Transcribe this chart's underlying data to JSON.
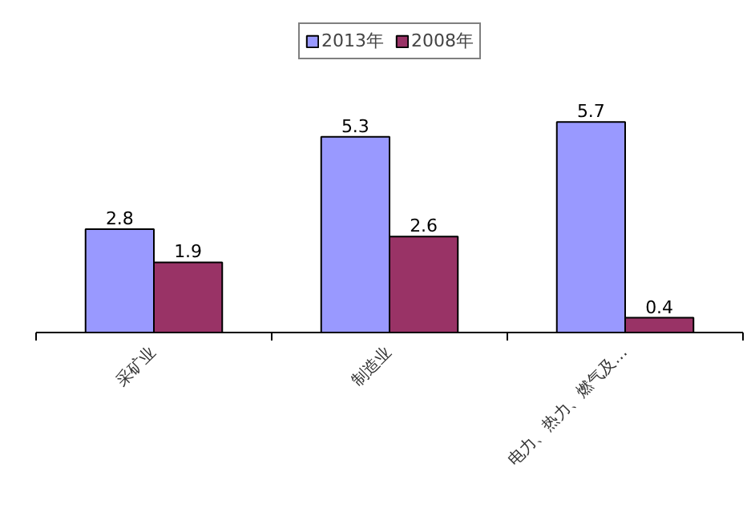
{
  "chart_data": {
    "type": "bar",
    "categories": [
      "采矿业",
      "制造业",
      "电力、热力、燃气及…"
    ],
    "series": [
      {
        "name": "2013年",
        "color": "#9999ff",
        "values": [
          2.8,
          5.3,
          5.7
        ]
      },
      {
        "name": "2008年",
        "color": "#993366",
        "values": [
          1.9,
          2.6,
          0.4
        ]
      }
    ],
    "data_labels": true,
    "legend": "top",
    "grid": false
  }
}
